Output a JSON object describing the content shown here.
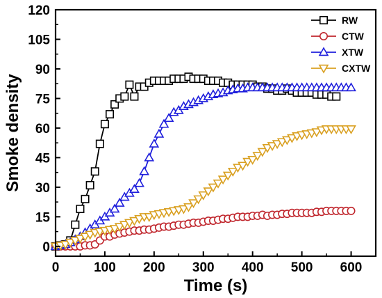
{
  "chart_data": {
    "type": "line",
    "title": "",
    "xlabel": "Time (s)",
    "ylabel": "Smoke density",
    "xlim": [
      0,
      650
    ],
    "ylim": [
      -5,
      120
    ],
    "xticks": [
      "0",
      "100",
      "200",
      "300",
      "400",
      "500",
      "600"
    ],
    "yticks": [
      "0",
      "15",
      "30",
      "45",
      "60",
      "75",
      "90",
      "105",
      "120"
    ],
    "legend_position": "top-right",
    "grid": false,
    "series": [
      {
        "name": "RW",
        "color": "#000000",
        "marker": "square",
        "points": [
          [
            0,
            0
          ],
          [
            10,
            0.5
          ],
          [
            20,
            1
          ],
          [
            30,
            3
          ],
          [
            40,
            11
          ],
          [
            50,
            19
          ],
          [
            60,
            24
          ],
          [
            70,
            31
          ],
          [
            80,
            38
          ],
          [
            90,
            52
          ],
          [
            100,
            62
          ],
          [
            110,
            67
          ],
          [
            120,
            72
          ],
          [
            130,
            75
          ],
          [
            140,
            76
          ],
          [
            150,
            82
          ],
          [
            160,
            76
          ],
          [
            170,
            81
          ],
          [
            180,
            81
          ],
          [
            190,
            83
          ],
          [
            200,
            84
          ],
          [
            210,
            84
          ],
          [
            220,
            84
          ],
          [
            230,
            84
          ],
          [
            240,
            85
          ],
          [
            250,
            85
          ],
          [
            260,
            85
          ],
          [
            270,
            86
          ],
          [
            280,
            85
          ],
          [
            290,
            85
          ],
          [
            300,
            85
          ],
          [
            310,
            84
          ],
          [
            320,
            84
          ],
          [
            330,
            84
          ],
          [
            340,
            83
          ],
          [
            350,
            83
          ],
          [
            360,
            82
          ],
          [
            370,
            82
          ],
          [
            380,
            82
          ],
          [
            390,
            82
          ],
          [
            400,
            82
          ],
          [
            410,
            81
          ],
          [
            420,
            81
          ],
          [
            430,
            80
          ],
          [
            440,
            80
          ],
          [
            450,
            79
          ],
          [
            460,
            79
          ],
          [
            470,
            80
          ],
          [
            480,
            79
          ],
          [
            490,
            78
          ],
          [
            500,
            78
          ],
          [
            510,
            78
          ],
          [
            520,
            78
          ],
          [
            530,
            77
          ],
          [
            540,
            77
          ],
          [
            550,
            77
          ],
          [
            560,
            76
          ],
          [
            570,
            76
          ]
        ]
      },
      {
        "name": "CTW",
        "color": "#c0262d",
        "marker": "circle",
        "points": [
          [
            0,
            0
          ],
          [
            10,
            0
          ],
          [
            20,
            0
          ],
          [
            30,
            0
          ],
          [
            40,
            0
          ],
          [
            50,
            0
          ],
          [
            60,
            0.5
          ],
          [
            70,
            0.5
          ],
          [
            80,
            1
          ],
          [
            90,
            3
          ],
          [
            100,
            5
          ],
          [
            110,
            5
          ],
          [
            120,
            6
          ],
          [
            130,
            6.5
          ],
          [
            140,
            7
          ],
          [
            150,
            7.5
          ],
          [
            160,
            8
          ],
          [
            170,
            8
          ],
          [
            180,
            8.5
          ],
          [
            190,
            8.5
          ],
          [
            200,
            9
          ],
          [
            210,
            9.5
          ],
          [
            220,
            10
          ],
          [
            230,
            10
          ],
          [
            240,
            10.5
          ],
          [
            250,
            11
          ],
          [
            260,
            11
          ],
          [
            270,
            11.5
          ],
          [
            280,
            12
          ],
          [
            290,
            12
          ],
          [
            300,
            12.5
          ],
          [
            310,
            13
          ],
          [
            320,
            13
          ],
          [
            330,
            13.5
          ],
          [
            340,
            14
          ],
          [
            350,
            14
          ],
          [
            360,
            14.5
          ],
          [
            370,
            15
          ],
          [
            380,
            15
          ],
          [
            390,
            15
          ],
          [
            400,
            15.5
          ],
          [
            410,
            15.5
          ],
          [
            420,
            16
          ],
          [
            430,
            15.5
          ],
          [
            440,
            16
          ],
          [
            450,
            16
          ],
          [
            460,
            16.5
          ],
          [
            470,
            16.5
          ],
          [
            480,
            17
          ],
          [
            490,
            17
          ],
          [
            500,
            17
          ],
          [
            510,
            17
          ],
          [
            520,
            17
          ],
          [
            530,
            17.5
          ],
          [
            540,
            17.5
          ],
          [
            550,
            18
          ],
          [
            560,
            18
          ],
          [
            570,
            18
          ],
          [
            580,
            18
          ],
          [
            590,
            18
          ],
          [
            600,
            18
          ]
        ]
      },
      {
        "name": "XTW",
        "color": "#1f1fdc",
        "marker": "triangle-up",
        "points": [
          [
            0,
            0
          ],
          [
            10,
            0.5
          ],
          [
            20,
            1
          ],
          [
            30,
            2
          ],
          [
            40,
            3.5
          ],
          [
            50,
            5
          ],
          [
            60,
            7
          ],
          [
            70,
            9
          ],
          [
            80,
            11
          ],
          [
            90,
            13
          ],
          [
            100,
            15
          ],
          [
            110,
            17
          ],
          [
            120,
            19
          ],
          [
            130,
            22
          ],
          [
            140,
            25
          ],
          [
            150,
            27
          ],
          [
            160,
            29
          ],
          [
            170,
            32
          ],
          [
            180,
            38
          ],
          [
            190,
            45
          ],
          [
            200,
            52
          ],
          [
            210,
            57
          ],
          [
            220,
            62
          ],
          [
            230,
            65
          ],
          [
            240,
            68
          ],
          [
            250,
            69
          ],
          [
            260,
            71
          ],
          [
            270,
            72
          ],
          [
            280,
            73
          ],
          [
            290,
            74
          ],
          [
            300,
            75
          ],
          [
            310,
            76
          ],
          [
            320,
            77
          ],
          [
            330,
            77.5
          ],
          [
            340,
            78
          ],
          [
            350,
            79
          ],
          [
            360,
            79.5
          ],
          [
            370,
            80
          ],
          [
            380,
            80
          ],
          [
            390,
            80.5
          ],
          [
            400,
            80.5
          ],
          [
            410,
            80.5
          ],
          [
            420,
            80.5
          ],
          [
            430,
            80.5
          ],
          [
            440,
            80.5
          ],
          [
            450,
            80.5
          ],
          [
            460,
            80.5
          ],
          [
            470,
            80.5
          ],
          [
            480,
            80.5
          ],
          [
            490,
            80.5
          ],
          [
            500,
            80.5
          ],
          [
            510,
            80.5
          ],
          [
            520,
            80.5
          ],
          [
            530,
            80.5
          ],
          [
            540,
            80.5
          ],
          [
            550,
            80.5
          ],
          [
            560,
            80.5
          ],
          [
            570,
            80.5
          ],
          [
            580,
            80.5
          ],
          [
            590,
            80.5
          ],
          [
            600,
            80.5
          ]
        ]
      },
      {
        "name": "CXTW",
        "color": "#d9a021",
        "marker": "triangle-down",
        "points": [
          [
            0,
            0
          ],
          [
            10,
            0.5
          ],
          [
            20,
            1
          ],
          [
            30,
            2
          ],
          [
            40,
            3
          ],
          [
            50,
            4
          ],
          [
            60,
            5
          ],
          [
            70,
            6
          ],
          [
            80,
            7
          ],
          [
            90,
            7.5
          ],
          [
            100,
            8
          ],
          [
            110,
            8.5
          ],
          [
            120,
            9
          ],
          [
            130,
            10
          ],
          [
            140,
            11
          ],
          [
            150,
            12
          ],
          [
            160,
            13
          ],
          [
            170,
            14
          ],
          [
            180,
            15
          ],
          [
            190,
            15
          ],
          [
            200,
            16
          ],
          [
            210,
            16.5
          ],
          [
            220,
            17
          ],
          [
            230,
            17.5
          ],
          [
            240,
            18
          ],
          [
            250,
            18.5
          ],
          [
            260,
            19
          ],
          [
            270,
            20
          ],
          [
            280,
            22
          ],
          [
            290,
            24
          ],
          [
            300,
            26
          ],
          [
            310,
            28
          ],
          [
            320,
            30
          ],
          [
            330,
            32
          ],
          [
            340,
            34
          ],
          [
            350,
            36
          ],
          [
            360,
            38
          ],
          [
            370,
            40
          ],
          [
            380,
            41
          ],
          [
            390,
            43
          ],
          [
            400,
            44
          ],
          [
            410,
            46
          ],
          [
            420,
            48
          ],
          [
            430,
            50
          ],
          [
            440,
            51
          ],
          [
            450,
            52
          ],
          [
            460,
            53
          ],
          [
            470,
            54
          ],
          [
            480,
            55
          ],
          [
            490,
            56
          ],
          [
            500,
            56.5
          ],
          [
            510,
            57
          ],
          [
            520,
            57.5
          ],
          [
            530,
            58
          ],
          [
            540,
            59
          ],
          [
            550,
            59.5
          ],
          [
            560,
            59.5
          ],
          [
            570,
            59.5
          ],
          [
            580,
            59.5
          ],
          [
            590,
            59.5
          ],
          [
            600,
            59.5
          ]
        ]
      }
    ]
  }
}
